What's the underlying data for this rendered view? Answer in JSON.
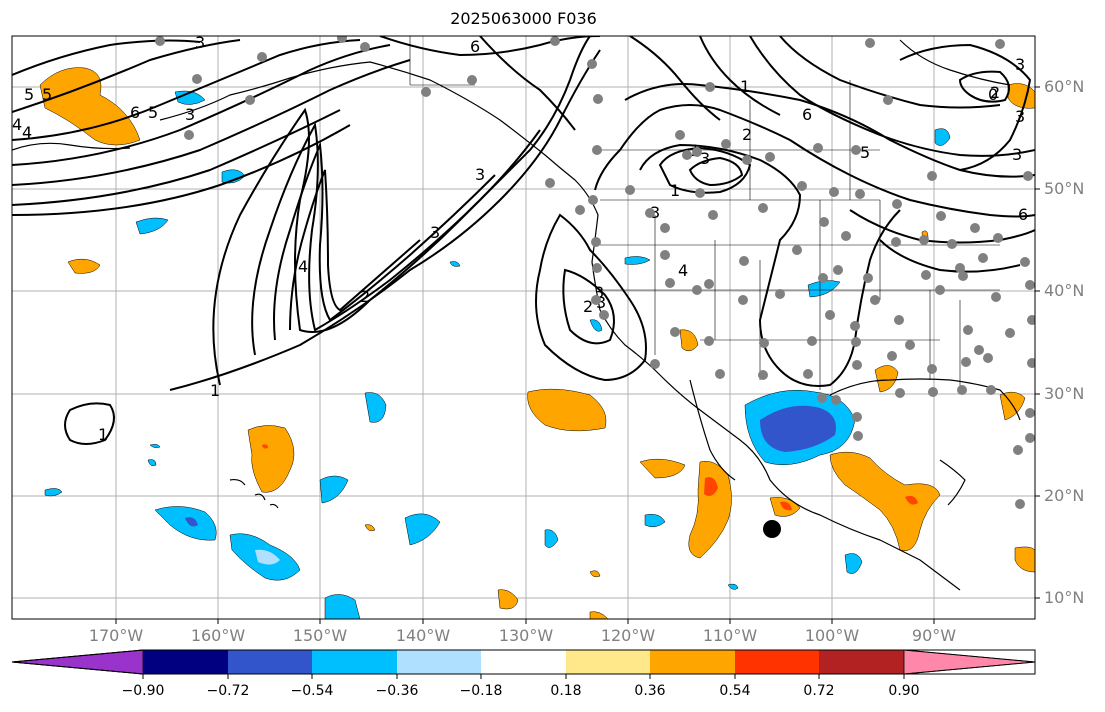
{
  "title": "2025063000 F036",
  "lat_labels": [
    "60°N",
    "50°N",
    "40°N",
    "30°N",
    "20°N",
    "10°N"
  ],
  "lon_labels": [
    "170°W",
    "160°W",
    "150°W",
    "140°W",
    "130°W",
    "120°W",
    "110°W",
    "100°W",
    "90°W"
  ],
  "colorbar": {
    "ticks": [
      "−0.90",
      "−0.72",
      "−0.54",
      "−0.36",
      "−0.18",
      "0.18",
      "0.36",
      "0.54",
      "0.72",
      "0.90"
    ],
    "colors": [
      "#9933cc",
      "#000080",
      "#3355cc",
      "#00bfff",
      "#b0e0ff",
      "#ffffff",
      "#ffe88a",
      "#ffa500",
      "#ff3300",
      "#b22222",
      "#ff88aa"
    ]
  },
  "contour_labels": [
    "6",
    "3",
    "5",
    "4",
    "3",
    "6",
    "5",
    "3",
    "4",
    "3",
    "2",
    "1",
    "1",
    "3",
    "2",
    "3",
    "4",
    "3",
    "1",
    "1",
    "6",
    "5",
    "2",
    "3",
    "1",
    "3",
    "2",
    "3",
    "6",
    "0",
    "3",
    "4",
    "5"
  ],
  "fill_colors": {
    "orange": "#ffa500",
    "red": "#ff4500",
    "blue": "#00bfff",
    "darkblue": "#3355cc",
    "lightblue": "#b0e0ff"
  }
}
